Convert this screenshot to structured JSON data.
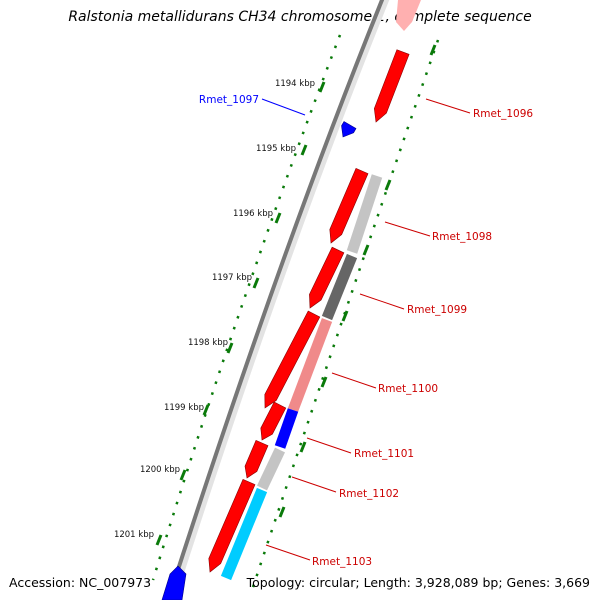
{
  "title": "Ralstonia metallidurans CH34 chromosome 1, complete sequence",
  "accession": "Accession: NC_007973",
  "summary": "Topology: circular; Length: 3,928,089 bp; Genes: 3,669",
  "colors": {
    "backbone": "#808080",
    "tick": "#0a7a0a",
    "forward_gene": "#ff0000",
    "reverse_gene_label": "#0000ff",
    "gene_label": "#cc0000"
  },
  "kbp_ticks": [
    {
      "label": "1194 kbp"
    },
    {
      "label": "1195 kbp"
    },
    {
      "label": "1196 kbp"
    },
    {
      "label": "1197 kbp"
    },
    {
      "label": "1198 kbp"
    },
    {
      "label": "1199 kbp"
    },
    {
      "label": "1200 kbp"
    },
    {
      "label": "1201 kbp"
    }
  ],
  "genes": [
    {
      "name": "Rmet_1096",
      "strand": "forward"
    },
    {
      "name": "Rmet_1097",
      "strand": "reverse"
    },
    {
      "name": "Rmet_1098",
      "strand": "forward",
      "category_color": "#c4c4c4"
    },
    {
      "name": "Rmet_1099",
      "strand": "forward",
      "category_color": "#666666"
    },
    {
      "name": "Rmet_1100",
      "strand": "forward",
      "category_color": "#f08a8a"
    },
    {
      "name": "Rmet_1101",
      "strand": "forward",
      "category_color": "#0000ff"
    },
    {
      "name": "Rmet_1102",
      "strand": "forward",
      "category_color": "#c4c4c4"
    },
    {
      "name": "Rmet_1103",
      "strand": "forward",
      "category_color": "#00ccff"
    }
  ]
}
